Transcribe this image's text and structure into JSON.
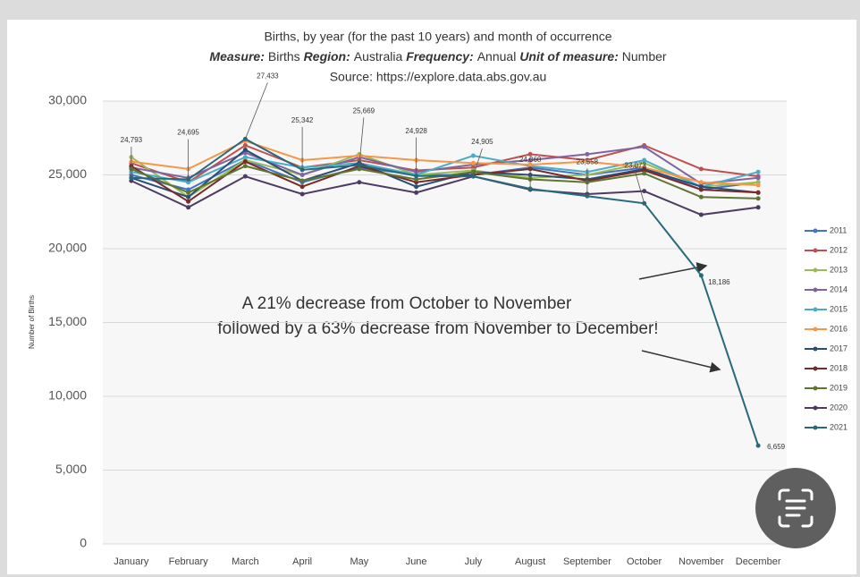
{
  "chart_data": {
    "type": "line",
    "title": "Births, by year (for the past 10 years) and month of occurrence",
    "subtitle_parts": [
      {
        "text": "Measure:",
        "bold": true
      },
      {
        "text": "Births",
        "bold": false
      },
      {
        "text": "Region:",
        "bold": true
      },
      {
        "text": "Australia",
        "bold": false
      },
      {
        "text": "Frequency:",
        "bold": true
      },
      {
        "text": "Annual",
        "bold": false
      },
      {
        "text": "Unit of measure:",
        "bold": true
      },
      {
        "text": "Number",
        "bold": false
      }
    ],
    "source": "Source: https://explore.data.abs.gov.au",
    "ylabel": "Number of Births",
    "categories": [
      "January",
      "February",
      "March",
      "April",
      "May",
      "June",
      "July",
      "August",
      "September",
      "October",
      "November",
      "December"
    ],
    "ylim": [
      0,
      30000
    ],
    "yticks": [
      0,
      {
        "value": 5000,
        "label": "5,000"
      },
      {
        "value": 10000,
        "label": "10,000"
      },
      {
        "value": 15000,
        "label": "15,000"
      },
      {
        "value": 20000,
        "label": "20,000"
      },
      {
        "value": 25000,
        "label": "25,000"
      },
      {
        "value": 30000,
        "label": "30,000"
      }
    ],
    "grid": true,
    "legend": "right",
    "series": [
      {
        "name": "2011",
        "color": "#4472c4",
        "values": [
          25000,
          24000,
          26000,
          24500,
          25500,
          25000,
          25000,
          25500,
          25000,
          25500,
          24000,
          24500
        ]
      },
      {
        "name": "2012",
        "color": "#c0504d",
        "values": [
          25800,
          24500,
          27000,
          25500,
          26000,
          25300,
          25500,
          26400,
          26000,
          27000,
          25400,
          24900
        ]
      },
      {
        "name": "2013",
        "color": "#9bbb59",
        "values": [
          26200,
          23500,
          26000,
          25000,
          26400,
          25000,
          25300,
          24800,
          25000,
          25800,
          24200,
          24500
        ]
      },
      {
        "name": "2014",
        "color": "#8064a2",
        "values": [
          25500,
          24800,
          26500,
          25000,
          26200,
          25200,
          25700,
          26000,
          26400,
          26900,
          24400,
          24800
        ]
      },
      {
        "name": "2015",
        "color": "#4bacc6",
        "values": [
          25200,
          24500,
          26200,
          25500,
          25800,
          25000,
          26300,
          25600,
          25200,
          26000,
          24200,
          25200
        ]
      },
      {
        "name": "2016",
        "color": "#f79646",
        "values": [
          25900,
          25400,
          27300,
          26000,
          26300,
          26000,
          25800,
          25700,
          25900,
          25500,
          24500,
          24300
        ]
      },
      {
        "name": "2017",
        "color": "#2c4d75",
        "values": [
          24800,
          23500,
          26700,
          24600,
          25800,
          24200,
          25200,
          25000,
          24700,
          25400,
          24200,
          23800
        ]
      },
      {
        "name": "2018",
        "color": "#772c2a",
        "values": [
          25600,
          23200,
          25900,
          24200,
          25600,
          24500,
          25000,
          25400,
          24600,
          25300,
          24000,
          23800
        ]
      },
      {
        "name": "2019",
        "color": "#5f7530",
        "values": [
          25400,
          23800,
          25600,
          24600,
          25400,
          24700,
          25200,
          24700,
          24500,
          25100,
          23500,
          23400
        ]
      },
      {
        "name": "2020",
        "color": "#4d3b62",
        "values": [
          24600,
          22800,
          24900,
          23700,
          24500,
          23800,
          24900,
          24000,
          23700,
          23900,
          22300,
          22800
        ]
      },
      {
        "name": "2021",
        "color": "#276a7c",
        "values": [
          24793,
          24695,
          27433,
          25342,
          25669,
          24928,
          24905,
          24060,
          23558,
          23073,
          18186,
          6659
        ],
        "value_labels": [
          "24,793",
          "24,695",
          "27,433",
          "25,342",
          "25,669",
          "24,928",
          "24,905",
          "24,060",
          "23,558",
          "23,073",
          "18,186",
          "6,659"
        ]
      }
    ],
    "annotations": [
      "A 21% decrease from October to November",
      "followed by a 63% decrease from November to December!"
    ]
  }
}
